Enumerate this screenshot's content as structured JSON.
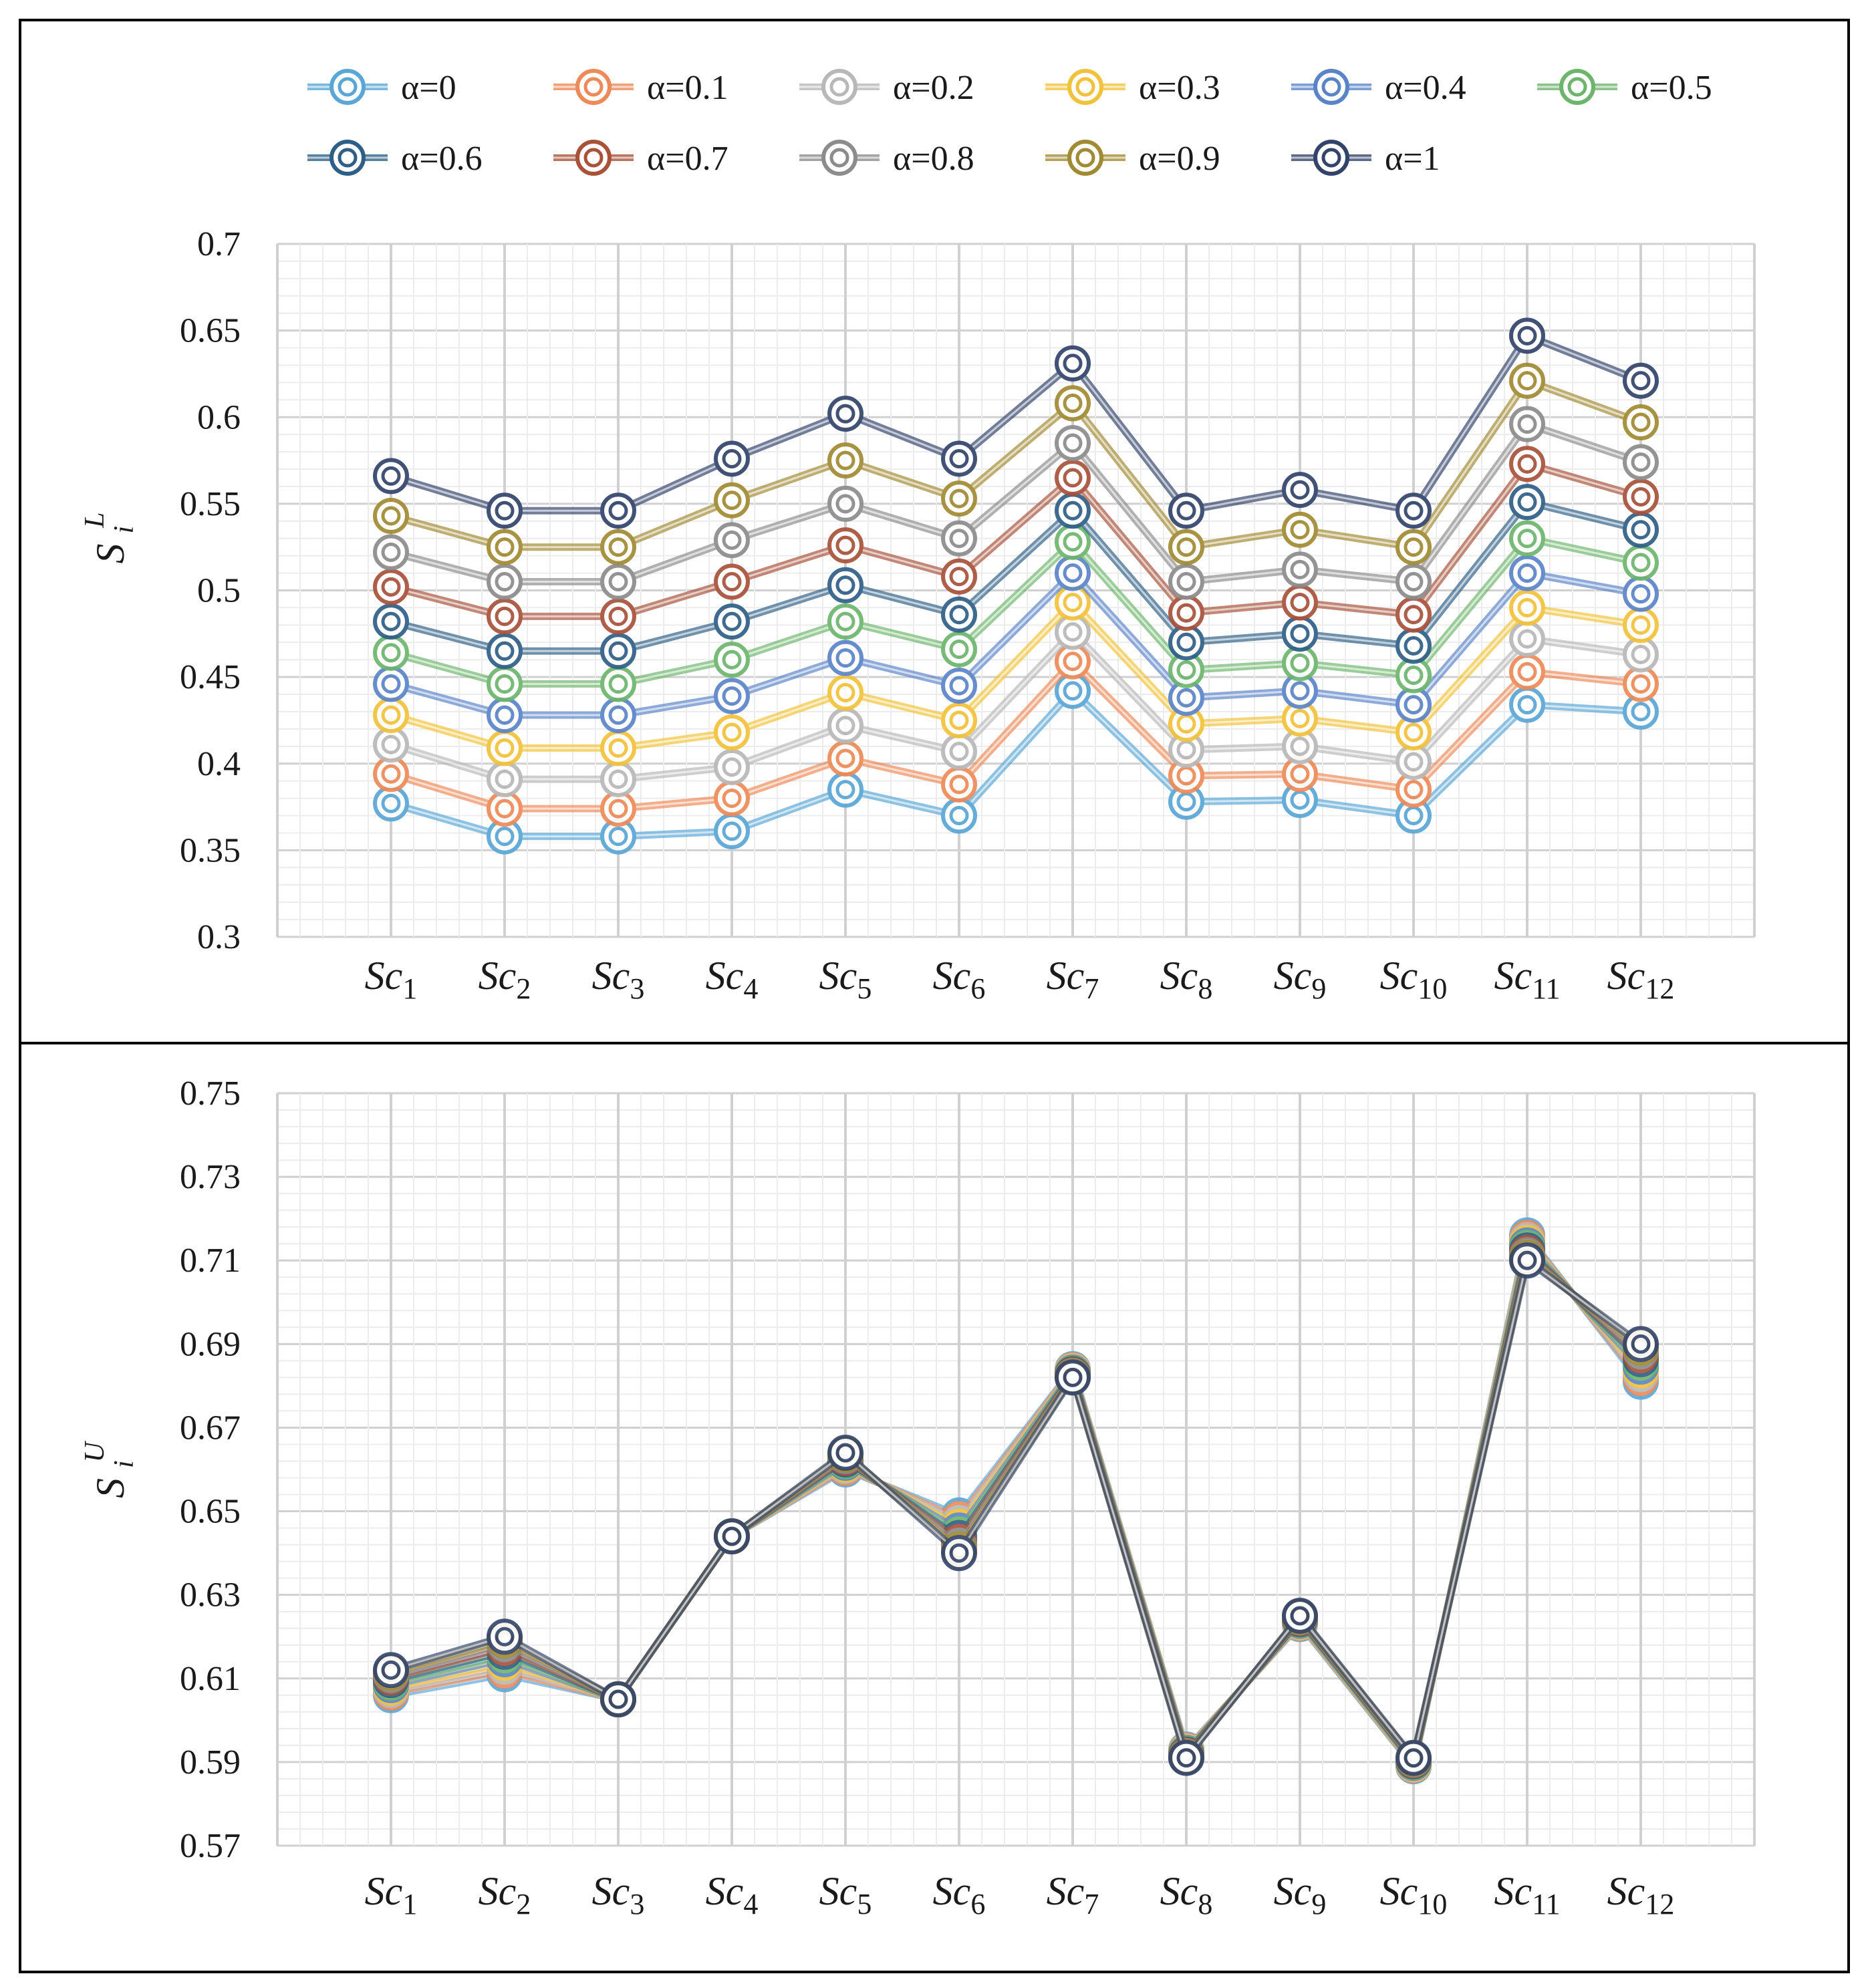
{
  "chart_data": [
    {
      "type": "line",
      "ylabel": "S_i^L",
      "ylabel_main": "S",
      "ylabel_sup": "L",
      "ylabel_sub": "i",
      "ylim": [
        0.3,
        0.7
      ],
      "yticks": [
        "0.7",
        "0.65",
        "0.6",
        "0.55",
        "0.5",
        "0.45",
        "0.4",
        "0.35",
        "0.3"
      ],
      "ytick_values": [
        0.7,
        0.65,
        0.6,
        0.55,
        0.5,
        0.45,
        0.4,
        0.35,
        0.3
      ],
      "grid": true,
      "legend_position": "top",
      "categories": [
        "Sc1",
        "Sc2",
        "Sc3",
        "Sc4",
        "Sc5",
        "Sc6",
        "Sc7",
        "Sc8",
        "Sc9",
        "Sc10",
        "Sc11",
        "Sc12"
      ],
      "category_base": "Sc",
      "category_subs": [
        "1",
        "2",
        "3",
        "4",
        "5",
        "6",
        "7",
        "8",
        "9",
        "10",
        "11",
        "12"
      ],
      "series": [
        {
          "name": "α=0",
          "values": [
            0.377,
            0.358,
            0.358,
            0.361,
            0.385,
            0.37,
            0.442,
            0.378,
            0.379,
            0.37,
            0.434,
            0.43
          ]
        },
        {
          "name": "α=0.1",
          "values": [
            0.394,
            0.374,
            0.374,
            0.38,
            0.403,
            0.388,
            0.459,
            0.393,
            0.394,
            0.385,
            0.453,
            0.446
          ]
        },
        {
          "name": "α=0.2",
          "values": [
            0.411,
            0.391,
            0.391,
            0.398,
            0.422,
            0.407,
            0.476,
            0.408,
            0.41,
            0.401,
            0.472,
            0.463
          ]
        },
        {
          "name": "α=0.3",
          "values": [
            0.428,
            0.409,
            0.409,
            0.418,
            0.441,
            0.425,
            0.493,
            0.423,
            0.426,
            0.418,
            0.49,
            0.48
          ]
        },
        {
          "name": "α=0.4",
          "values": [
            0.446,
            0.428,
            0.428,
            0.439,
            0.461,
            0.445,
            0.51,
            0.438,
            0.442,
            0.434,
            0.51,
            0.498
          ]
        },
        {
          "name": "α=0.5",
          "values": [
            0.464,
            0.446,
            0.446,
            0.46,
            0.482,
            0.466,
            0.528,
            0.454,
            0.458,
            0.451,
            0.53,
            0.516
          ]
        },
        {
          "name": "α=0.6",
          "values": [
            0.482,
            0.465,
            0.465,
            0.482,
            0.503,
            0.486,
            0.546,
            0.47,
            0.475,
            0.468,
            0.551,
            0.535
          ]
        },
        {
          "name": "α=0.7",
          "values": [
            0.502,
            0.485,
            0.485,
            0.505,
            0.526,
            0.508,
            0.565,
            0.487,
            0.493,
            0.486,
            0.573,
            0.554
          ]
        },
        {
          "name": "α=0.8",
          "values": [
            0.522,
            0.505,
            0.505,
            0.529,
            0.55,
            0.53,
            0.585,
            0.505,
            0.512,
            0.505,
            0.596,
            0.574
          ]
        },
        {
          "name": "α=0.9",
          "values": [
            0.543,
            0.525,
            0.525,
            0.552,
            0.575,
            0.553,
            0.608,
            0.525,
            0.535,
            0.525,
            0.621,
            0.597
          ]
        },
        {
          "name": "α=1",
          "values": [
            0.566,
            0.546,
            0.546,
            0.576,
            0.602,
            0.576,
            0.631,
            0.546,
            0.558,
            0.546,
            0.647,
            0.621
          ]
        }
      ]
    },
    {
      "type": "line",
      "ylabel": "S_i^U",
      "ylabel_main": "S",
      "ylabel_sup": "U",
      "ylabel_sub": "i",
      "ylim": [
        0.57,
        0.75
      ],
      "yticks": [
        "0.75",
        "0.73",
        "0.71",
        "0.69",
        "0.67",
        "0.65",
        "0.63",
        "0.61",
        "0.59",
        "0.57"
      ],
      "ytick_values": [
        0.75,
        0.73,
        0.71,
        0.69,
        0.67,
        0.65,
        0.63,
        0.61,
        0.59,
        0.57
      ],
      "grid": true,
      "categories": [
        "Sc1",
        "Sc2",
        "Sc3",
        "Sc4",
        "Sc5",
        "Sc6",
        "Sc7",
        "Sc8",
        "Sc9",
        "Sc10",
        "Sc11",
        "Sc12"
      ],
      "category_base": "Sc",
      "category_subs": [
        "1",
        "2",
        "3",
        "4",
        "5",
        "6",
        "7",
        "8",
        "9",
        "10",
        "11",
        "12"
      ],
      "series": [
        {
          "name": "α=0",
          "values": [
            0.606,
            0.611,
            0.605,
            0.644,
            0.66,
            0.649,
            0.684,
            0.593,
            0.623,
            0.589,
            0.716,
            0.681
          ]
        },
        {
          "name": "α=0.1",
          "values": [
            0.6066,
            0.6119,
            0.605,
            0.644,
            0.6604,
            0.6481,
            0.6838,
            0.5928,
            0.6232,
            0.5892,
            0.7154,
            0.6819
          ]
        },
        {
          "name": "α=0.2",
          "values": [
            0.6072,
            0.6128,
            0.605,
            0.644,
            0.6608,
            0.6472,
            0.6836,
            0.5926,
            0.6234,
            0.5894,
            0.7148,
            0.6828
          ]
        },
        {
          "name": "α=0.3",
          "values": [
            0.6078,
            0.6137,
            0.605,
            0.644,
            0.6612,
            0.6463,
            0.6834,
            0.5924,
            0.6236,
            0.5896,
            0.7142,
            0.6837
          ]
        },
        {
          "name": "α=0.4",
          "values": [
            0.6084,
            0.6146,
            0.605,
            0.644,
            0.6616,
            0.6454,
            0.6832,
            0.5922,
            0.6238,
            0.5898,
            0.7136,
            0.6846
          ]
        },
        {
          "name": "α=0.5",
          "values": [
            0.609,
            0.6155,
            0.605,
            0.644,
            0.662,
            0.6445,
            0.683,
            0.592,
            0.624,
            0.59,
            0.713,
            0.6855
          ]
        },
        {
          "name": "α=0.6",
          "values": [
            0.6096,
            0.6164,
            0.605,
            0.644,
            0.6624,
            0.6436,
            0.6828,
            0.5918,
            0.6242,
            0.5902,
            0.7124,
            0.6864
          ]
        },
        {
          "name": "α=0.7",
          "values": [
            0.6102,
            0.6173,
            0.605,
            0.644,
            0.6628,
            0.6427,
            0.6826,
            0.5916,
            0.6244,
            0.5904,
            0.7118,
            0.6873
          ]
        },
        {
          "name": "α=0.8",
          "values": [
            0.6108,
            0.6182,
            0.605,
            0.644,
            0.6632,
            0.6418,
            0.6824,
            0.5914,
            0.6246,
            0.5906,
            0.7112,
            0.6882
          ]
        },
        {
          "name": "α=0.9",
          "values": [
            0.6114,
            0.6191,
            0.605,
            0.644,
            0.6636,
            0.6409,
            0.6822,
            0.5912,
            0.6248,
            0.5908,
            0.7106,
            0.6891
          ]
        },
        {
          "name": "α=1",
          "values": [
            0.612,
            0.62,
            0.605,
            0.644,
            0.664,
            0.64,
            0.682,
            0.591,
            0.625,
            0.591,
            0.71,
            0.69
          ]
        }
      ]
    }
  ],
  "legend": {
    "entries": [
      "α=0",
      "α=0.1",
      "α=0.2",
      "α=0.3",
      "α=0.4",
      "α=0.5",
      "α=0.6",
      "α=0.7",
      "α=0.8",
      "α=0.9",
      "α=1"
    ]
  },
  "colors": {
    "series": [
      "#5aa6d6",
      "#ee8a58",
      "#b8b8b8",
      "#f2c23a",
      "#5b84c8",
      "#6db56d",
      "#2e5f86",
      "#a8523a",
      "#8c8c8c",
      "#a08a33",
      "#33446b"
    ],
    "grid": "#dcdcdc",
    "frame": "#000000"
  }
}
